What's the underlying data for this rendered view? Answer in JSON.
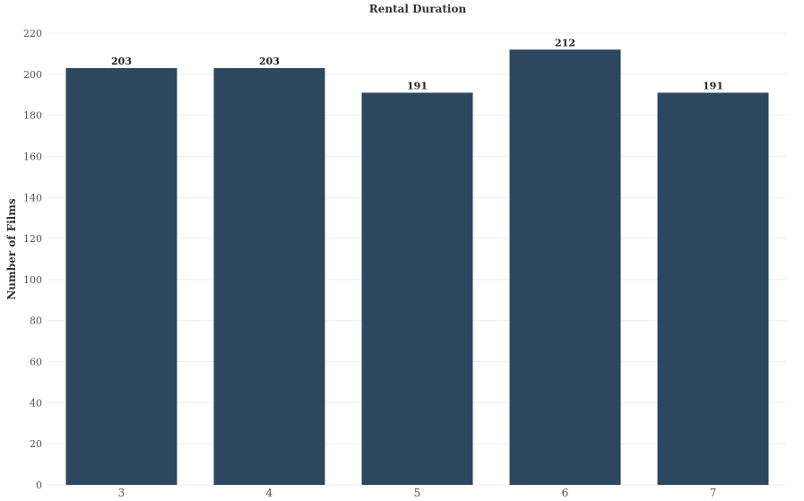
{
  "chart_data": {
    "type": "bar",
    "title": "Rental Duration",
    "xlabel": "",
    "ylabel": "Number of Films",
    "categories": [
      "3",
      "4",
      "5",
      "6",
      "7"
    ],
    "values": [
      203,
      203,
      191,
      212,
      191
    ],
    "data_labels": [
      "203",
      "203",
      "191",
      "212",
      "191"
    ],
    "ylim": [
      0,
      220
    ],
    "yticks": [
      "0",
      "20",
      "40",
      "60",
      "80",
      "100",
      "120",
      "140",
      "160",
      "180",
      "200",
      "220"
    ],
    "ytick_values": [
      0,
      20,
      40,
      60,
      80,
      100,
      120,
      140,
      160,
      180,
      200,
      220
    ],
    "grid": true,
    "bar_color": "#2e4760"
  }
}
